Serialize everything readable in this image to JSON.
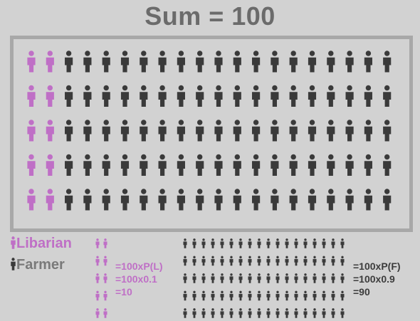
{
  "title": "Sum = 100",
  "colors": {
    "librarian": "#bf6fc6",
    "farmer": "#3a3a3a",
    "background": "#d2d2d2",
    "frame": "#a8a8a8"
  },
  "grid": {
    "rows": 5,
    "columns": 20,
    "librarian_columns": 2,
    "icon": "person-icon"
  },
  "legend": {
    "librarian_label": "Libarian",
    "farmer_label": "Farmer"
  },
  "librarian_group": {
    "count": 10,
    "columns": 2,
    "rows": 5,
    "equation": [
      "=100xP(L)",
      "=100x0.1",
      "=10"
    ]
  },
  "farmer_group": {
    "count": 90,
    "columns": 18,
    "rows": 5,
    "equation": [
      "=100xP(F)",
      "=100x0.9",
      "=90"
    ]
  }
}
